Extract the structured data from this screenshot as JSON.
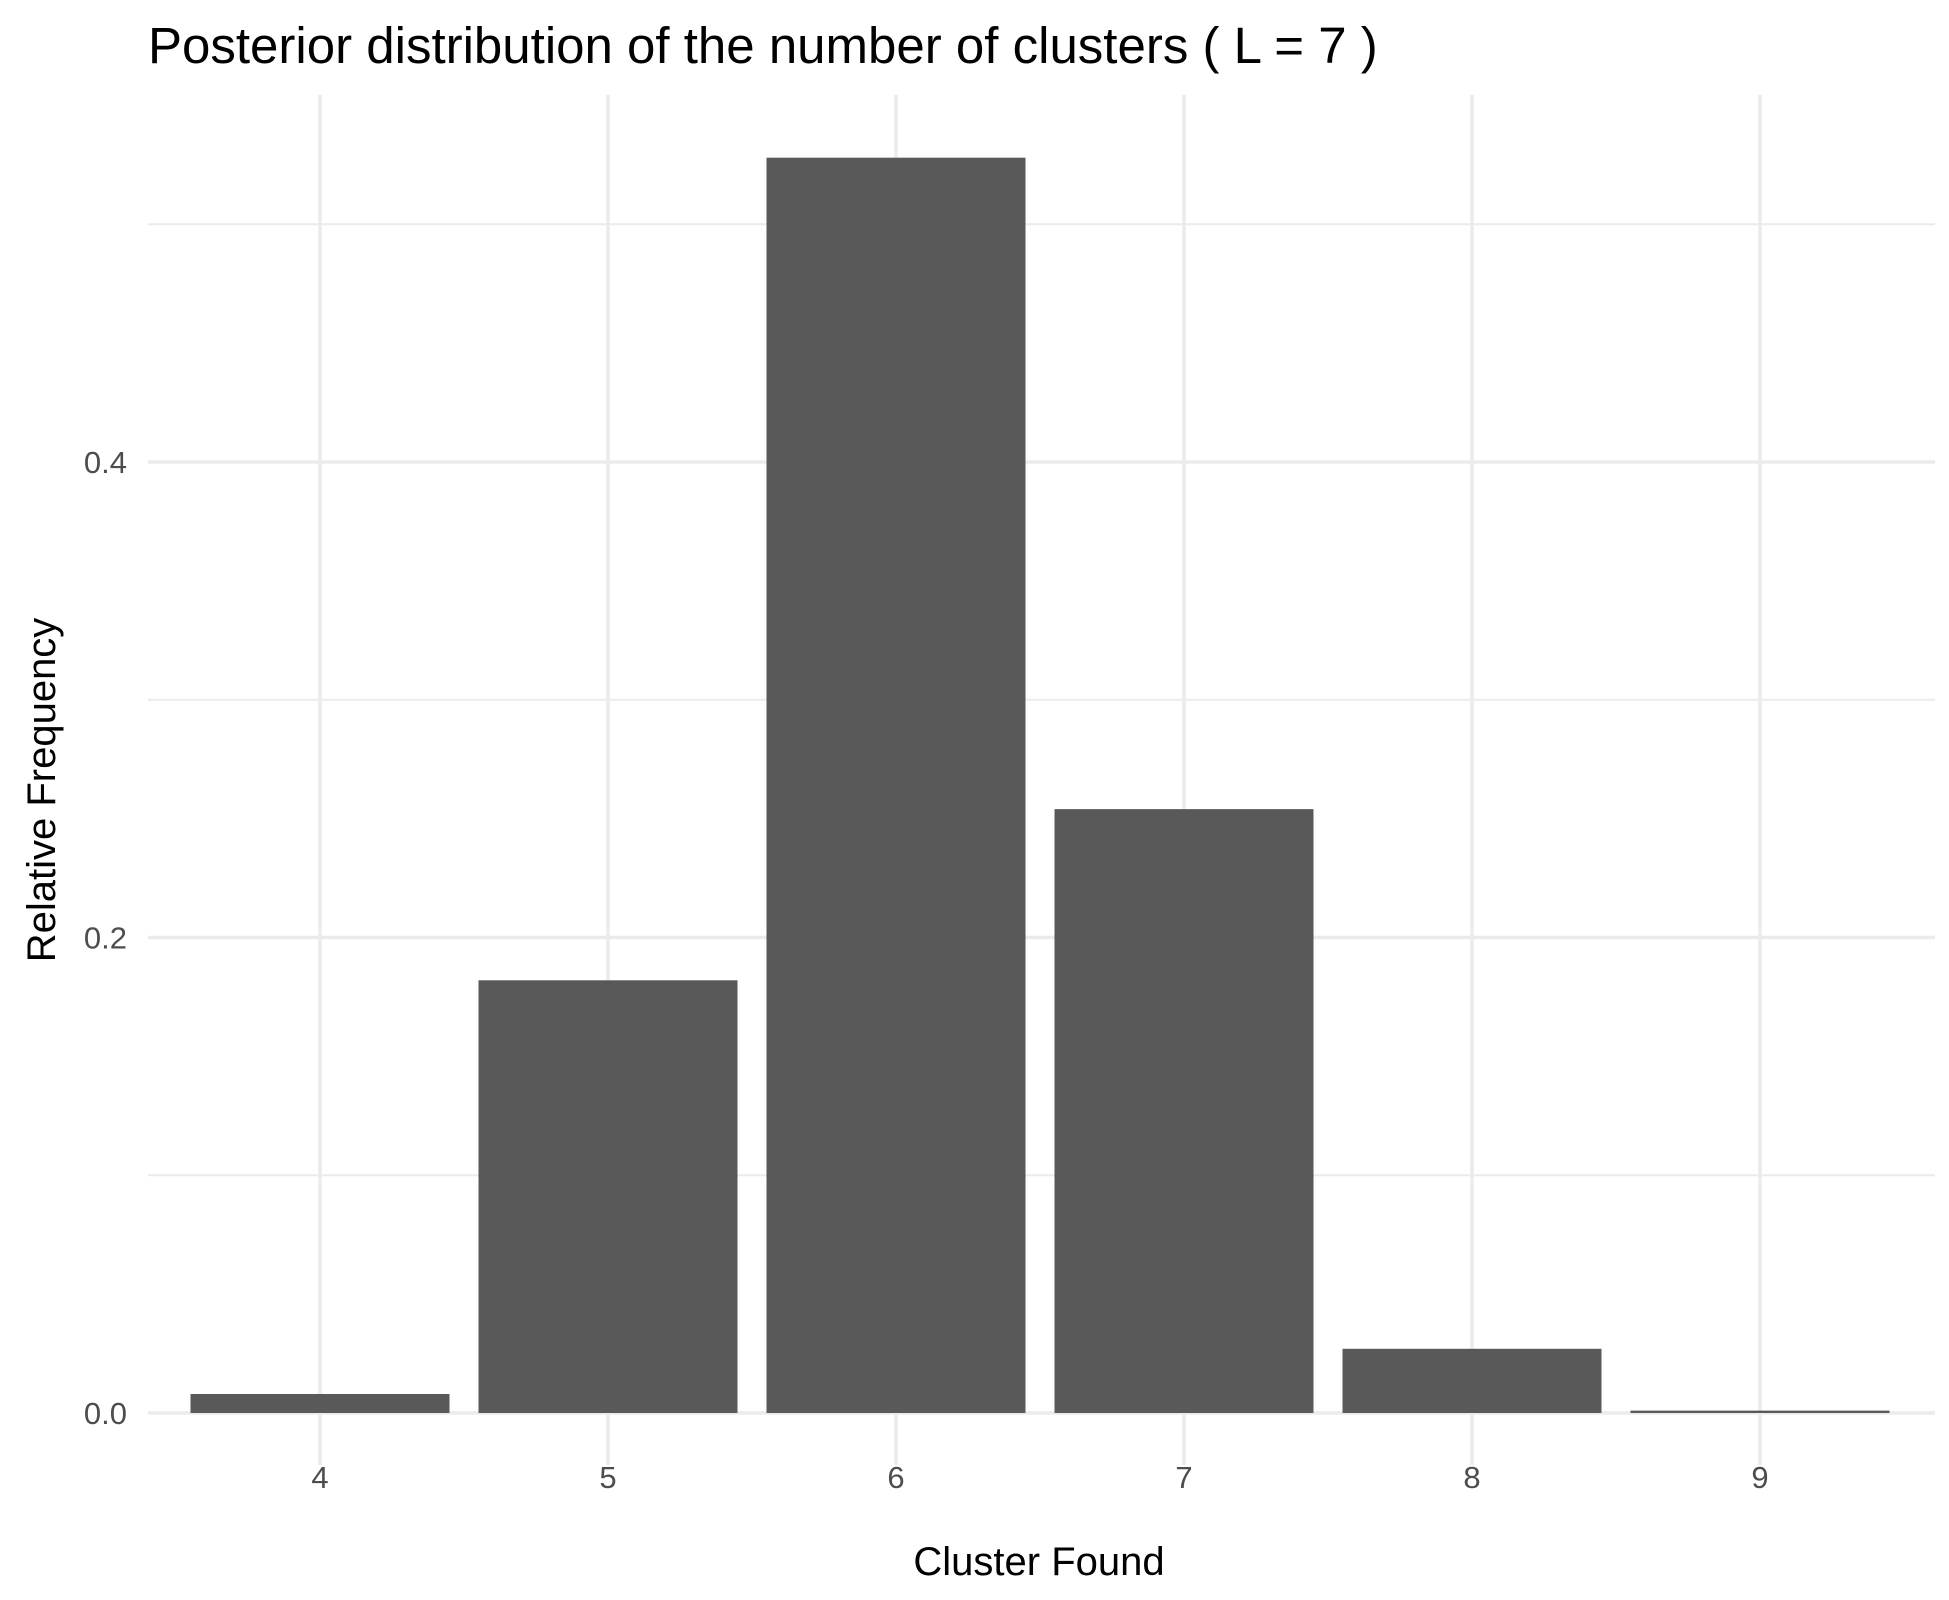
{
  "chart_data": {
    "type": "bar",
    "title": "Posterior distribution of the number of clusters ( L = 7 )",
    "xlabel": "Cluster Found",
    "ylabel": "Relative Frequency",
    "categories": [
      "4",
      "5",
      "6",
      "7",
      "8",
      "9"
    ],
    "values": [
      0.008,
      0.182,
      0.528,
      0.254,
      0.027,
      0.001
    ],
    "ylim": [
      0,
      0.55
    ],
    "yticks": [
      "0.0",
      "0.2",
      "0.4"
    ],
    "bar_color": "#595959",
    "grid": true,
    "legend": "none"
  }
}
